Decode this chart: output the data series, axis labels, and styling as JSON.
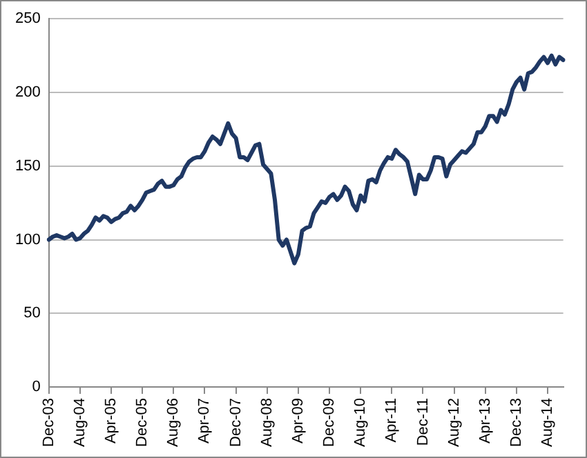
{
  "chart_data": {
    "type": "line",
    "categories": [
      "Dec-03",
      null,
      null,
      null,
      null,
      null,
      null,
      null,
      "Aug-04",
      null,
      null,
      null,
      null,
      null,
      null,
      null,
      "Apr-05",
      null,
      null,
      null,
      null,
      null,
      null,
      null,
      "Dec-05",
      null,
      null,
      null,
      null,
      null,
      null,
      null,
      "Aug-06",
      null,
      null,
      null,
      null,
      null,
      null,
      null,
      "Apr-07",
      null,
      null,
      null,
      null,
      null,
      null,
      null,
      "Dec-07",
      null,
      null,
      null,
      null,
      null,
      null,
      null,
      "Aug-08",
      null,
      null,
      null,
      null,
      null,
      null,
      null,
      "Apr-09",
      null,
      null,
      null,
      null,
      null,
      null,
      null,
      "Dec-09",
      null,
      null,
      null,
      null,
      null,
      null,
      null,
      "Aug-10",
      null,
      null,
      null,
      null,
      null,
      null,
      null,
      "Apr-11",
      null,
      null,
      null,
      null,
      null,
      null,
      null,
      "Dec-11",
      null,
      null,
      null,
      null,
      null,
      null,
      null,
      "Aug-12",
      null,
      null,
      null,
      null,
      null,
      null,
      null,
      "Apr-13",
      null,
      null,
      null,
      null,
      null,
      null,
      null,
      "Dec-13",
      null,
      null,
      null,
      null,
      null,
      null,
      null,
      "Aug-14",
      null,
      null,
      null,
      null
    ],
    "series": [
      {
        "color": "#1f3864",
        "values": [
          100,
          102,
          103,
          102,
          101,
          102,
          104,
          100,
          101,
          104,
          106,
          110,
          115,
          113,
          116,
          115,
          112,
          114,
          115,
          118,
          119,
          123,
          120,
          123,
          127,
          132,
          133,
          134,
          138,
          140,
          136,
          136,
          137,
          141,
          143,
          149,
          153,
          155,
          156,
          156,
          160,
          166,
          170,
          168,
          165,
          172,
          179,
          172,
          169,
          156,
          156,
          154,
          159,
          164,
          165,
          151,
          148,
          145,
          127,
          100,
          96,
          100,
          92,
          84,
          90,
          106,
          108,
          109,
          118,
          122,
          126,
          125,
          129,
          131,
          127,
          130,
          136,
          133,
          124,
          120,
          130,
          126,
          140,
          141,
          139,
          147,
          152,
          156,
          155,
          161,
          158,
          156,
          153,
          142,
          131,
          144,
          141,
          141,
          147,
          156,
          156,
          155,
          143,
          151,
          154,
          157,
          160,
          159,
          162,
          165,
          173,
          173,
          177,
          184,
          184,
          180,
          188,
          185,
          192,
          202,
          207,
          210,
          202,
          213,
          214,
          217,
          221,
          224,
          220,
          225,
          219,
          224,
          222
        ]
      }
    ],
    "ylim": [
      0,
      250
    ],
    "yticks": [
      0,
      50,
      100,
      150,
      200,
      250
    ],
    "grid": "y",
    "legend": false,
    "marker": "none",
    "line_style": "solid"
  }
}
